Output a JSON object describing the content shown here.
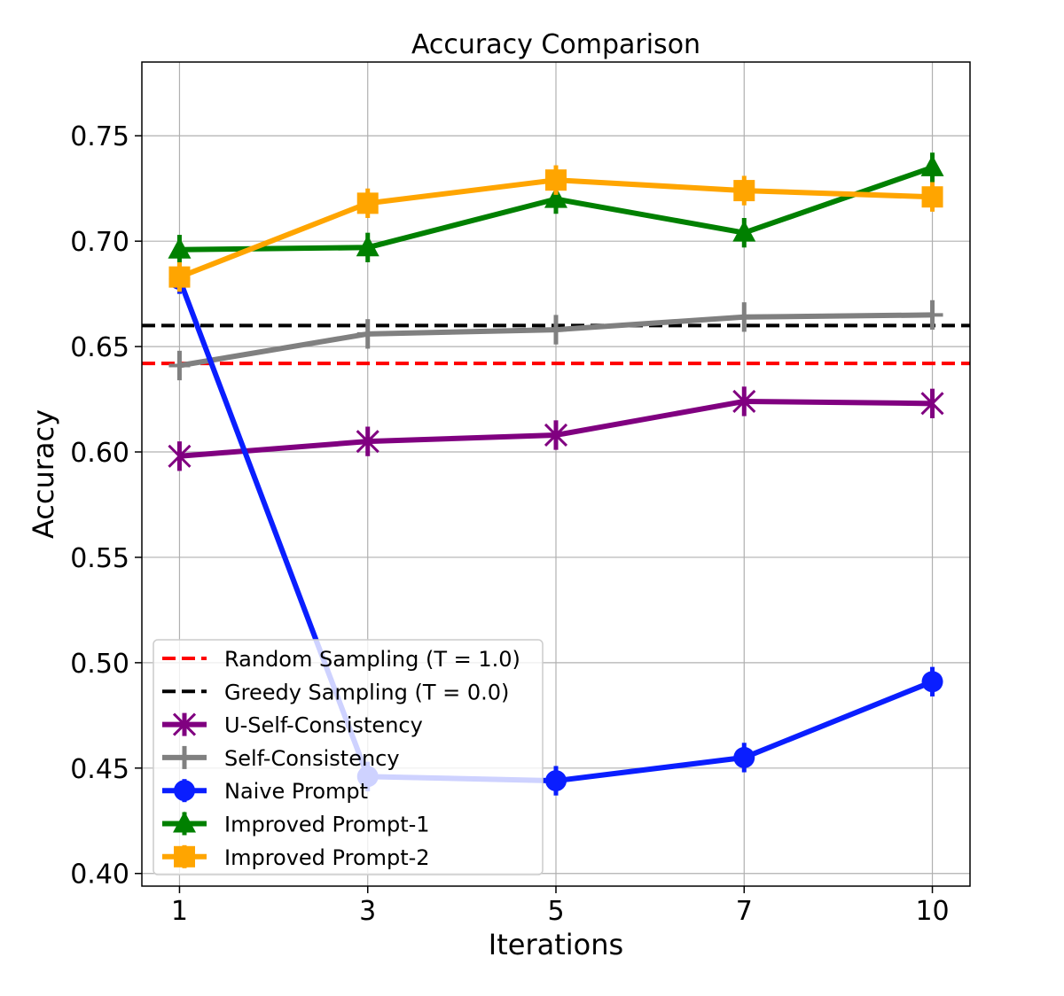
{
  "chart_data": {
    "type": "line",
    "title": "Accuracy Comparison",
    "xlabel": "Iterations",
    "ylabel": "Accuracy",
    "categories": [
      "1",
      "3",
      "5",
      "7",
      "10"
    ],
    "ylim": [
      0.394,
      0.785
    ],
    "yticks": [
      "0.40",
      "0.45",
      "0.50",
      "0.55",
      "0.60",
      "0.65",
      "0.70",
      "0.75"
    ],
    "grid": true,
    "legend_position": "lower-left",
    "hlines": [
      {
        "name": "Random Sampling (T = 1.0)",
        "value": 0.642,
        "color": "#ff0000",
        "style": "dashed"
      },
      {
        "name": "Greedy Sampling (T = 0.0)",
        "value": 0.66,
        "color": "#000000",
        "style": "dashed"
      }
    ],
    "series": [
      {
        "name": "U-Self-Consistency",
        "color": "#800080",
        "marker": "x",
        "values": [
          0.598,
          0.605,
          0.608,
          0.624,
          0.623
        ],
        "errors": [
          0.007,
          0.007,
          0.007,
          0.007,
          0.007
        ]
      },
      {
        "name": "Self-Consistency",
        "color": "#808080",
        "marker": "plus",
        "values": [
          0.641,
          0.656,
          0.658,
          0.664,
          0.665
        ],
        "errors": [
          0.007,
          0.007,
          0.007,
          0.007,
          0.007
        ]
      },
      {
        "name": "Naive Prompt",
        "color": "#0a1eff",
        "marker": "circle",
        "values": [
          0.682,
          0.446,
          0.444,
          0.455,
          0.491
        ],
        "errors": [
          0.007,
          0.007,
          0.007,
          0.007,
          0.007
        ]
      },
      {
        "name": "Improved Prompt-1",
        "color": "#008000",
        "marker": "triangle",
        "values": [
          0.696,
          0.697,
          0.72,
          0.704,
          0.735
        ],
        "errors": [
          0.007,
          0.007,
          0.007,
          0.007,
          0.007
        ]
      },
      {
        "name": "Improved Prompt-2",
        "color": "#ffa500",
        "marker": "square",
        "values": [
          0.683,
          0.718,
          0.729,
          0.724,
          0.721
        ],
        "errors": [
          0.007,
          0.007,
          0.007,
          0.007,
          0.007
        ]
      }
    ]
  }
}
